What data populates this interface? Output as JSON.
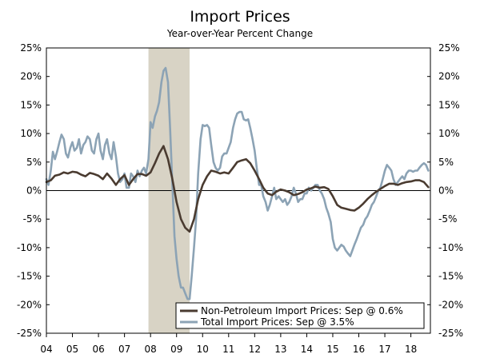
{
  "chart_data": {
    "type": "line",
    "title": "Import Prices",
    "subtitle": "Year-over-Year Percent Change",
    "xlabel": "",
    "ylabel": "",
    "xlim": [
      2004.0,
      2018.75
    ],
    "ylim": [
      -25,
      25
    ],
    "y_ticks": [
      25,
      20,
      15,
      10,
      5,
      0,
      -5,
      -10,
      -15,
      -20,
      -25
    ],
    "y_tick_labels": [
      "25%",
      "20%",
      "15%",
      "10%",
      "5%",
      "0%",
      "-5%",
      "-10%",
      "-15%",
      "-20%",
      "-25%"
    ],
    "x_ticks": [
      2004,
      2005,
      2006,
      2007,
      2008,
      2009,
      2010,
      2011,
      2012,
      2013,
      2014,
      2015,
      2016,
      2017,
      2018
    ],
    "x_tick_labels": [
      "04",
      "05",
      "06",
      "07",
      "08",
      "09",
      "10",
      "11",
      "12",
      "13",
      "14",
      "15",
      "16",
      "17",
      "18"
    ],
    "recession": {
      "start": 2007.92,
      "end": 2009.5,
      "color": "#d8d3c5"
    },
    "zero_line": true,
    "legend_position": "bottom-right",
    "series": [
      {
        "name": "Non-Petroleum Import Prices: Sep @ 0.6%",
        "color": "#4a3b30",
        "points": [
          [
            2004.0,
            1.5
          ],
          [
            2004.17,
            1.8
          ],
          [
            2004.33,
            2.6
          ],
          [
            2004.5,
            2.8
          ],
          [
            2004.67,
            3.2
          ],
          [
            2004.83,
            3.0
          ],
          [
            2005.0,
            3.3
          ],
          [
            2005.17,
            3.2
          ],
          [
            2005.33,
            2.8
          ],
          [
            2005.5,
            2.5
          ],
          [
            2005.67,
            3.1
          ],
          [
            2005.83,
            2.9
          ],
          [
            2006.0,
            2.6
          ],
          [
            2006.17,
            2.0
          ],
          [
            2006.33,
            3.0
          ],
          [
            2006.5,
            2.1
          ],
          [
            2006.67,
            1.0
          ],
          [
            2006.83,
            2.0
          ],
          [
            2007.0,
            2.7
          ],
          [
            2007.17,
            1.0
          ],
          [
            2007.33,
            2.0
          ],
          [
            2007.5,
            2.9
          ],
          [
            2007.67,
            2.9
          ],
          [
            2007.83,
            2.6
          ],
          [
            2008.0,
            3.2
          ],
          [
            2008.17,
            4.8
          ],
          [
            2008.33,
            6.5
          ],
          [
            2008.5,
            7.8
          ],
          [
            2008.67,
            5.5
          ],
          [
            2008.83,
            2.2
          ],
          [
            2009.0,
            -2.0
          ],
          [
            2009.17,
            -5.0
          ],
          [
            2009.33,
            -6.5
          ],
          [
            2009.5,
            -7.2
          ],
          [
            2009.67,
            -5.0
          ],
          [
            2009.83,
            -1.5
          ],
          [
            2010.0,
            1.0
          ],
          [
            2010.17,
            2.5
          ],
          [
            2010.33,
            3.5
          ],
          [
            2010.5,
            3.3
          ],
          [
            2010.67,
            3.0
          ],
          [
            2010.83,
            3.2
          ],
          [
            2011.0,
            3.0
          ],
          [
            2011.17,
            4.0
          ],
          [
            2011.33,
            5.0
          ],
          [
            2011.5,
            5.3
          ],
          [
            2011.67,
            5.5
          ],
          [
            2011.83,
            4.8
          ],
          [
            2012.0,
            3.5
          ],
          [
            2012.17,
            2.0
          ],
          [
            2012.33,
            0.5
          ],
          [
            2012.5,
            -0.5
          ],
          [
            2012.67,
            -0.8
          ],
          [
            2012.83,
            -0.2
          ],
          [
            2013.0,
            0.2
          ],
          [
            2013.17,
            0.0
          ],
          [
            2013.33,
            -0.3
          ],
          [
            2013.5,
            -0.8
          ],
          [
            2013.67,
            -0.6
          ],
          [
            2013.83,
            -0.3
          ],
          [
            2014.0,
            0.2
          ],
          [
            2014.17,
            0.4
          ],
          [
            2014.33,
            0.7
          ],
          [
            2014.5,
            0.5
          ],
          [
            2014.67,
            0.6
          ],
          [
            2014.83,
            0.3
          ],
          [
            2015.0,
            -1.0
          ],
          [
            2015.17,
            -2.5
          ],
          [
            2015.33,
            -3.0
          ],
          [
            2015.5,
            -3.2
          ],
          [
            2015.67,
            -3.4
          ],
          [
            2015.83,
            -3.5
          ],
          [
            2016.0,
            -3.0
          ],
          [
            2016.17,
            -2.3
          ],
          [
            2016.33,
            -1.5
          ],
          [
            2016.5,
            -0.8
          ],
          [
            2016.67,
            -0.2
          ],
          [
            2016.83,
            0.3
          ],
          [
            2017.0,
            0.8
          ],
          [
            2017.17,
            1.2
          ],
          [
            2017.33,
            1.2
          ],
          [
            2017.5,
            1.0
          ],
          [
            2017.67,
            1.3
          ],
          [
            2017.83,
            1.5
          ],
          [
            2018.0,
            1.6
          ],
          [
            2018.17,
            1.8
          ],
          [
            2018.33,
            1.8
          ],
          [
            2018.5,
            1.5
          ],
          [
            2018.67,
            0.6
          ]
        ]
      },
      {
        "name": "Total Import Prices: Sep @ 3.5%",
        "color": "#8ca3b5",
        "points": [
          [
            2004.0,
            2.0
          ],
          [
            2004.08,
            1.0
          ],
          [
            2004.17,
            3.5
          ],
          [
            2004.25,
            6.8
          ],
          [
            2004.33,
            5.5
          ],
          [
            2004.42,
            7.0
          ],
          [
            2004.5,
            8.5
          ],
          [
            2004.58,
            9.8
          ],
          [
            2004.67,
            9.0
          ],
          [
            2004.75,
            6.5
          ],
          [
            2004.83,
            5.8
          ],
          [
            2004.92,
            7.5
          ],
          [
            2005.0,
            8.5
          ],
          [
            2005.08,
            7.0
          ],
          [
            2005.17,
            7.5
          ],
          [
            2005.25,
            9.0
          ],
          [
            2005.33,
            6.5
          ],
          [
            2005.42,
            8.0
          ],
          [
            2005.5,
            8.5
          ],
          [
            2005.58,
            9.5
          ],
          [
            2005.67,
            9.0
          ],
          [
            2005.75,
            7.0
          ],
          [
            2005.83,
            6.5
          ],
          [
            2005.92,
            9.0
          ],
          [
            2006.0,
            10.0
          ],
          [
            2006.08,
            7.0
          ],
          [
            2006.17,
            5.5
          ],
          [
            2006.25,
            8.0
          ],
          [
            2006.33,
            9.0
          ],
          [
            2006.42,
            6.5
          ],
          [
            2006.5,
            5.5
          ],
          [
            2006.58,
            8.5
          ],
          [
            2006.67,
            6.0
          ],
          [
            2006.75,
            3.0
          ],
          [
            2006.83,
            1.5
          ],
          [
            2006.92,
            2.0
          ],
          [
            2007.0,
            3.0
          ],
          [
            2007.08,
            0.5
          ],
          [
            2007.17,
            0.5
          ],
          [
            2007.25,
            3.0
          ],
          [
            2007.33,
            2.5
          ],
          [
            2007.42,
            1.5
          ],
          [
            2007.5,
            3.5
          ],
          [
            2007.58,
            2.5
          ],
          [
            2007.67,
            3.5
          ],
          [
            2007.75,
            4.0
          ],
          [
            2007.83,
            3.0
          ],
          [
            2007.92,
            5.5
          ],
          [
            2008.0,
            12.0
          ],
          [
            2008.08,
            11.0
          ],
          [
            2008.17,
            13.0
          ],
          [
            2008.25,
            14.0
          ],
          [
            2008.33,
            15.5
          ],
          [
            2008.42,
            19.0
          ],
          [
            2008.5,
            21.0
          ],
          [
            2008.58,
            21.5
          ],
          [
            2008.67,
            19.0
          ],
          [
            2008.75,
            11.0
          ],
          [
            2008.83,
            2.0
          ],
          [
            2008.92,
            -8.0
          ],
          [
            2009.0,
            -12.0
          ],
          [
            2009.08,
            -15.0
          ],
          [
            2009.17,
            -17.0
          ],
          [
            2009.25,
            -17.0
          ],
          [
            2009.33,
            -18.0
          ],
          [
            2009.42,
            -19.0
          ],
          [
            2009.5,
            -19.0
          ],
          [
            2009.58,
            -15.0
          ],
          [
            2009.67,
            -10.0
          ],
          [
            2009.75,
            -5.0
          ],
          [
            2009.83,
            3.0
          ],
          [
            2009.92,
            9.0
          ],
          [
            2010.0,
            11.5
          ],
          [
            2010.08,
            11.3
          ],
          [
            2010.17,
            11.5
          ],
          [
            2010.25,
            11.0
          ],
          [
            2010.33,
            8.0
          ],
          [
            2010.42,
            5.0
          ],
          [
            2010.5,
            4.0
          ],
          [
            2010.58,
            3.5
          ],
          [
            2010.67,
            4.0
          ],
          [
            2010.75,
            6.0
          ],
          [
            2010.83,
            6.5
          ],
          [
            2010.92,
            6.5
          ],
          [
            2011.0,
            7.5
          ],
          [
            2011.08,
            8.5
          ],
          [
            2011.17,
            11.0
          ],
          [
            2011.25,
            12.5
          ],
          [
            2011.33,
            13.5
          ],
          [
            2011.42,
            13.8
          ],
          [
            2011.5,
            13.8
          ],
          [
            2011.58,
            12.5
          ],
          [
            2011.67,
            12.3
          ],
          [
            2011.75,
            12.5
          ],
          [
            2011.83,
            11.0
          ],
          [
            2011.92,
            9.0
          ],
          [
            2012.0,
            7.0
          ],
          [
            2012.08,
            4.0
          ],
          [
            2012.17,
            1.0
          ],
          [
            2012.25,
            1.0
          ],
          [
            2012.33,
            -1.0
          ],
          [
            2012.42,
            -2.0
          ],
          [
            2012.5,
            -3.5
          ],
          [
            2012.58,
            -2.5
          ],
          [
            2012.67,
            -1.0
          ],
          [
            2012.75,
            0.5
          ],
          [
            2012.83,
            -1.5
          ],
          [
            2012.92,
            -1.0
          ],
          [
            2013.0,
            -1.5
          ],
          [
            2013.08,
            -2.0
          ],
          [
            2013.17,
            -1.5
          ],
          [
            2013.25,
            -2.5
          ],
          [
            2013.33,
            -2.0
          ],
          [
            2013.42,
            -1.0
          ],
          [
            2013.5,
            0.5
          ],
          [
            2013.58,
            -0.5
          ],
          [
            2013.67,
            -2.0
          ],
          [
            2013.75,
            -1.5
          ],
          [
            2013.83,
            -1.5
          ],
          [
            2013.92,
            -0.5
          ],
          [
            2014.0,
            -0.5
          ],
          [
            2014.08,
            0.5
          ],
          [
            2014.17,
            0.0
          ],
          [
            2014.25,
            0.5
          ],
          [
            2014.33,
            1.0
          ],
          [
            2014.42,
            1.0
          ],
          [
            2014.5,
            0.0
          ],
          [
            2014.58,
            -0.5
          ],
          [
            2014.67,
            -1.5
          ],
          [
            2014.75,
            -3.0
          ],
          [
            2014.83,
            -4.0
          ],
          [
            2014.92,
            -5.5
          ],
          [
            2015.0,
            -8.5
          ],
          [
            2015.08,
            -10.0
          ],
          [
            2015.17,
            -10.5
          ],
          [
            2015.25,
            -10.0
          ],
          [
            2015.33,
            -9.5
          ],
          [
            2015.42,
            -9.8
          ],
          [
            2015.5,
            -10.5
          ],
          [
            2015.58,
            -11.0
          ],
          [
            2015.67,
            -11.5
          ],
          [
            2015.75,
            -10.5
          ],
          [
            2015.83,
            -9.5
          ],
          [
            2015.92,
            -8.5
          ],
          [
            2016.0,
            -7.5
          ],
          [
            2016.08,
            -6.5
          ],
          [
            2016.17,
            -6.0
          ],
          [
            2016.25,
            -5.0
          ],
          [
            2016.33,
            -4.5
          ],
          [
            2016.42,
            -3.5
          ],
          [
            2016.5,
            -2.5
          ],
          [
            2016.58,
            -2.0
          ],
          [
            2016.67,
            -1.0
          ],
          [
            2016.75,
            0.0
          ],
          [
            2016.83,
            0.5
          ],
          [
            2016.92,
            2.0
          ],
          [
            2017.0,
            3.5
          ],
          [
            2017.08,
            4.5
          ],
          [
            2017.17,
            4.0
          ],
          [
            2017.25,
            3.5
          ],
          [
            2017.33,
            2.0
          ],
          [
            2017.42,
            1.0
          ],
          [
            2017.5,
            1.5
          ],
          [
            2017.58,
            2.0
          ],
          [
            2017.67,
            2.5
          ],
          [
            2017.75,
            2.0
          ],
          [
            2017.83,
            3.0
          ],
          [
            2017.92,
            3.5
          ],
          [
            2018.0,
            3.5
          ],
          [
            2018.08,
            3.3
          ],
          [
            2018.17,
            3.5
          ],
          [
            2018.25,
            3.5
          ],
          [
            2018.33,
            4.0
          ],
          [
            2018.42,
            4.5
          ],
          [
            2018.5,
            4.8
          ],
          [
            2018.58,
            4.5
          ],
          [
            2018.67,
            3.5
          ]
        ]
      }
    ]
  }
}
